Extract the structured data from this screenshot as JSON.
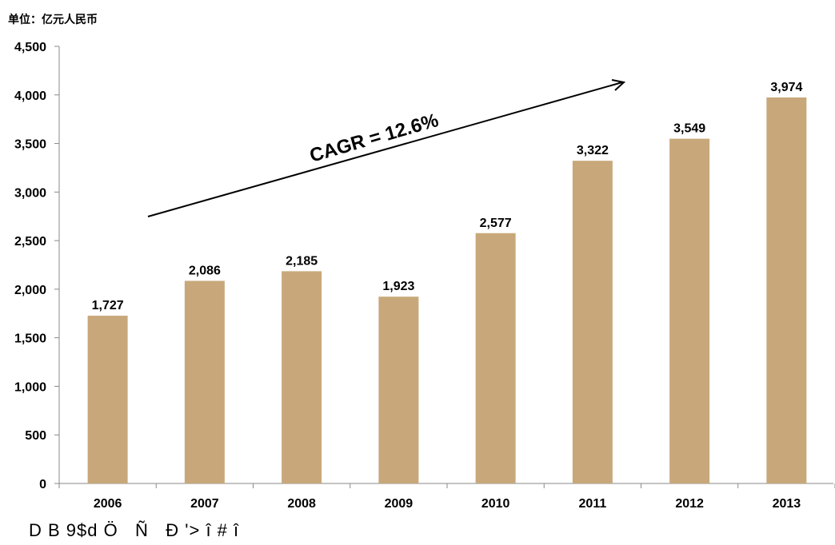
{
  "unit_label": "单位：亿元人民币",
  "footer_text": "D B 9$d Ö   Ñ   Đ '> î # î",
  "chart_data": {
    "type": "bar",
    "categories": [
      "2006",
      "2007",
      "2008",
      "2009",
      "2010",
      "2011",
      "2012",
      "2013"
    ],
    "values": [
      1727,
      2086,
      2185,
      1923,
      2577,
      3322,
      3549,
      3974
    ],
    "data_labels": [
      "1,727",
      "2,086",
      "2,185",
      "1,923",
      "2,577",
      "3,322",
      "3,549",
      "3,974"
    ],
    "y_ticks": [
      0,
      500,
      1000,
      1500,
      2000,
      2500,
      3000,
      3500,
      4000,
      4500
    ],
    "y_tick_labels": [
      "0",
      "500",
      "1,000",
      "1,500",
      "2,000",
      "2,500",
      "3,000",
      "3,500",
      "4,000",
      "4,500"
    ],
    "ylim": [
      0,
      4500
    ],
    "grid": false,
    "bar_color": "#c8a87a",
    "annotation": "CAGR = 12.6%",
    "title": "",
    "xlabel": "",
    "ylabel": ""
  }
}
